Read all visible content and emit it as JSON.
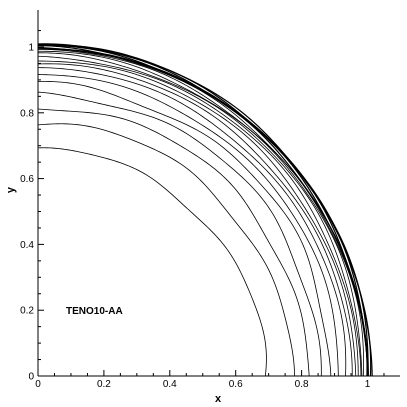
{
  "chart_data": {
    "type": "line",
    "xlabel": "x",
    "ylabel": "y",
    "xlim": [
      0,
      1.1
    ],
    "ylim": [
      0,
      1.1
    ],
    "x_ticks": [
      "0",
      "0.2",
      "0.4",
      "0.6",
      "0.8",
      "1"
    ],
    "y_ticks": [
      "0",
      "0.2",
      "0.4",
      "0.6",
      "0.8",
      "1"
    ],
    "annotation": "TENO10-AA",
    "grid": false,
    "contours": {
      "radii": [
        0.69,
        0.77,
        0.82,
        0.86,
        0.89,
        0.915,
        0.935,
        0.95,
        0.962,
        0.972,
        0.98,
        0.986,
        0.991,
        0.995,
        0.998,
        1.0,
        1.002,
        1.004,
        1.006,
        1.008,
        1.01
      ],
      "shape": "quarter-circle"
    }
  }
}
